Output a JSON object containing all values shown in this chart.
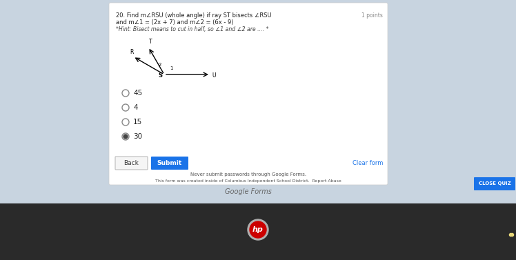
{
  "bg_outer": "#1a1a2e",
  "bg_screen": "#c8d4e0",
  "bg_form": "#ffffff",
  "question_number": "20.",
  "question_text": "Find m∠RSU (whole angle) if ray ST bisects ∠RSU",
  "question_text2": "and m∠1 = (2x + 7) and m∠2 = (6x - 9)",
  "hint_text": "*Hint: Bisect means to cut in half, so ∠1 and ∠2 are .... *",
  "points_text": "1 points",
  "choices": [
    "45",
    "4",
    "15",
    "30"
  ],
  "selected_choice": "30",
  "submit_btn_color": "#1a73e8",
  "submit_btn_text": "Submit",
  "back_btn_text": "Back",
  "clear_form_text": "Clear form",
  "footer1": "Never submit passwords through Google Forms.",
  "footer2": "This form was created inside of Columbus Independent School District.  Report Abuse",
  "footer3": "Google Forms",
  "close_quiz_color": "#1a73e8",
  "close_quiz_text": "CLOSE QUIZ",
  "hp_logo_color": "#cc0000"
}
